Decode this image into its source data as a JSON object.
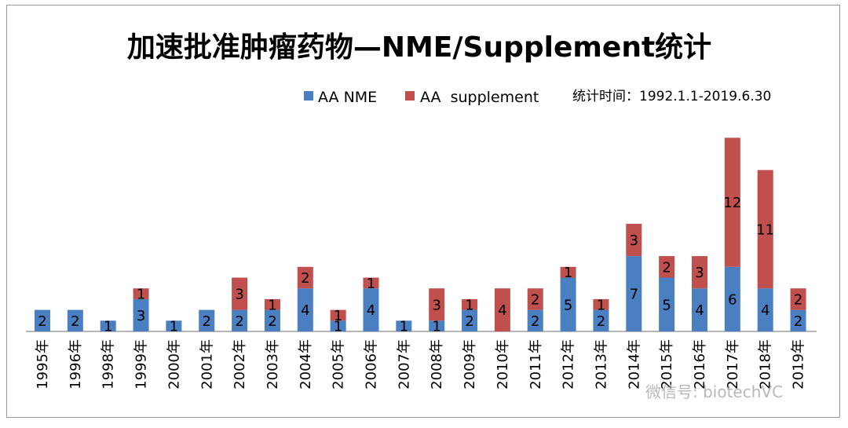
{
  "chart_data": {
    "type": "bar",
    "stacked": true,
    "title": "加速批准肿瘤药物—NME/Supplement统计",
    "note": "统计时间：1992.1.1-2019.6.30",
    "legend_position": "top-right",
    "categories": [
      "1995年",
      "1996年",
      "1998年",
      "1999年",
      "2000年",
      "2001年",
      "2002年",
      "2003年",
      "2004年",
      "2005年",
      "2006年",
      "2007年",
      "2008年",
      "2009年",
      "2010年",
      "2011年",
      "2012年",
      "2013年",
      "2014年",
      "2015年",
      "2016年",
      "2017年",
      "2018年",
      "2019年"
    ],
    "series": [
      {
        "name": "AA NME",
        "color": "#4a7fc1",
        "values": [
          2,
          2,
          1,
          3,
          1,
          2,
          2,
          2,
          4,
          1,
          4,
          1,
          1,
          2,
          0,
          2,
          5,
          2,
          7,
          5,
          4,
          6,
          4,
          2
        ]
      },
      {
        "name": "AA  supplement",
        "color": "#c0504d",
        "values": [
          0,
          0,
          0,
          1,
          0,
          0,
          3,
          1,
          2,
          1,
          1,
          0,
          3,
          1,
          4,
          2,
          1,
          1,
          3,
          2,
          3,
          12,
          11,
          2
        ]
      }
    ],
    "ylim": [
      0,
      18
    ],
    "grid": false
  },
  "watermark": "微信号: biotechVC"
}
